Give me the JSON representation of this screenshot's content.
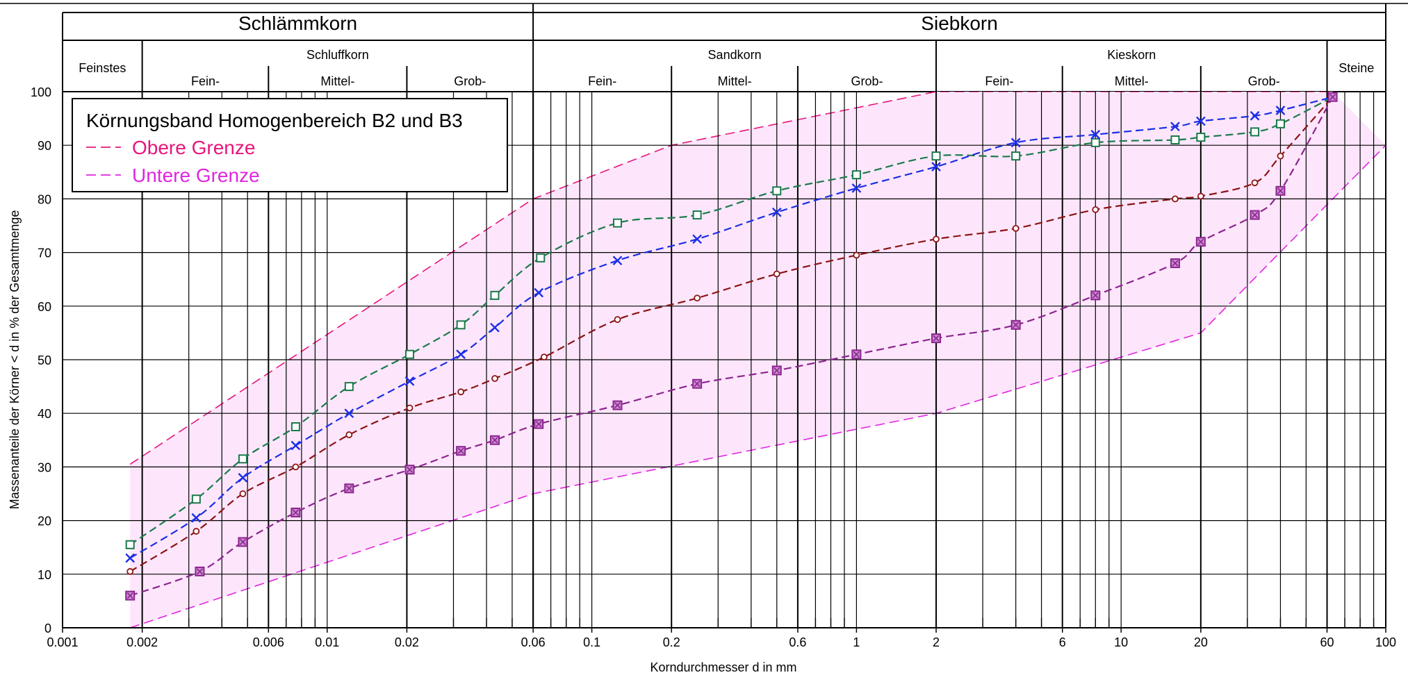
{
  "chart_data": {
    "type": "line",
    "x_scale": "log",
    "xlim": [
      0.001,
      100
    ],
    "ylim": [
      0,
      100
    ],
    "grid": true,
    "xlabel": "Korndurchmesser d in mm",
    "ylabel": "Massenanteile der Körner < d in % der Gesamtmenge",
    "x_tick_labels": [
      {
        "v": 0.001,
        "t": "0.001"
      },
      {
        "v": 0.002,
        "t": "0.002"
      },
      {
        "v": 0.006,
        "t": "0.006"
      },
      {
        "v": 0.01,
        "t": "0.01"
      },
      {
        "v": 0.02,
        "t": "0.02"
      },
      {
        "v": 0.06,
        "t": "0.06"
      },
      {
        "v": 0.1,
        "t": "0.1"
      },
      {
        "v": 0.2,
        "t": "0.2"
      },
      {
        "v": 0.6,
        "t": "0.6"
      },
      {
        "v": 1,
        "t": "1"
      },
      {
        "v": 2,
        "t": "2"
      },
      {
        "v": 6,
        "t": "6"
      },
      {
        "v": 10,
        "t": "10"
      },
      {
        "v": 20,
        "t": "20"
      },
      {
        "v": 60,
        "t": "60"
      },
      {
        "v": 100,
        "t": "100"
      }
    ],
    "y_ticks": [
      0,
      10,
      20,
      30,
      40,
      50,
      60,
      70,
      80,
      90,
      100
    ],
    "major_boundaries": [
      0.002,
      0.006,
      0.02,
      0.06,
      0.2,
      0.6,
      2,
      6,
      20,
      60
    ],
    "classification": {
      "top": [
        {
          "label": "Schlämmkorn",
          "from": 0.001,
          "to": 0.06
        },
        {
          "label": "Siebkorn",
          "from": 0.06,
          "to": 100
        }
      ],
      "mid": [
        {
          "label": "Feinstes",
          "from": 0.001,
          "to": 0.002,
          "full": true
        },
        {
          "label": "Schluffkorn",
          "from": 0.002,
          "to": 0.06
        },
        {
          "label": "Sandkorn",
          "from": 0.06,
          "to": 2
        },
        {
          "label": "Kieskorn",
          "from": 2,
          "to": 60
        },
        {
          "label": "Steine",
          "from": 60,
          "to": 100,
          "full": true
        }
      ],
      "sub": [
        {
          "label": "Fein-",
          "from": 0.002,
          "to": 0.006
        },
        {
          "label": "Mittel-",
          "from": 0.006,
          "to": 0.02
        },
        {
          "label": "Grob-",
          "from": 0.02,
          "to": 0.06
        },
        {
          "label": "Fein-",
          "from": 0.06,
          "to": 0.2
        },
        {
          "label": "Mittel-",
          "from": 0.2,
          "to": 0.6
        },
        {
          "label": "Grob-",
          "from": 0.6,
          "to": 2
        },
        {
          "label": "Fein-",
          "from": 2,
          "to": 6
        },
        {
          "label": "Mittel-",
          "from": 6,
          "to": 20
        },
        {
          "label": "Grob-",
          "from": 20,
          "to": 60
        }
      ]
    },
    "legend": {
      "title": "Körnungsband Homogenbereich B2 und B3",
      "placement": "top-left",
      "entries": [
        {
          "name": "Obere Grenze",
          "color": "#e8157a"
        },
        {
          "name": "Untere Grenze",
          "color": "#e026e0"
        }
      ]
    },
    "band": {
      "fill": "#fde6fb",
      "upper": {
        "name": "Obere Grenze",
        "color": "#e8157a",
        "x": [
          0.0018,
          0.06,
          0.2,
          2,
          63
        ],
        "y": [
          30.5,
          80,
          90,
          100,
          100
        ]
      },
      "lower": {
        "name": "Untere Grenze",
        "color": "#e026e0",
        "x": [
          0.0018,
          0.06,
          2,
          20,
          63,
          100
        ],
        "y": [
          0,
          25,
          40,
          55,
          80,
          90
        ]
      }
    },
    "series": [
      {
        "color": "#1a7a4a",
        "marker": "square-open",
        "x": [
          0.0018,
          0.0032,
          0.0048,
          0.0076,
          0.0121,
          0.0205,
          0.032,
          0.043,
          0.064,
          0.125,
          0.25,
          0.5,
          1,
          2,
          4,
          8,
          16,
          20,
          32,
          40,
          63
        ],
        "y": [
          15.5,
          24,
          31.5,
          37.5,
          45,
          51,
          56.5,
          62,
          69,
          75.5,
          77,
          81.5,
          84.5,
          88,
          88,
          90.5,
          91,
          91.5,
          92.5,
          94,
          99
        ]
      },
      {
        "color": "#1a2ee8",
        "marker": "x",
        "x": [
          0.0018,
          0.0032,
          0.0048,
          0.0076,
          0.0121,
          0.0205,
          0.032,
          0.043,
          0.063,
          0.125,
          0.25,
          0.5,
          1,
          2,
          4,
          8,
          16,
          20,
          32,
          40,
          63
        ],
        "y": [
          13,
          20.5,
          28,
          34,
          40,
          46,
          51,
          56,
          62.5,
          68.5,
          72.5,
          77.5,
          82,
          86,
          90.5,
          92,
          93.5,
          94.5,
          95.5,
          96.5,
          99
        ]
      },
      {
        "color": "#8b1414",
        "marker": "circle-open",
        "x": [
          0.0018,
          0.0032,
          0.0048,
          0.0076,
          0.0121,
          0.0205,
          0.032,
          0.043,
          0.066,
          0.125,
          0.25,
          0.5,
          1,
          2,
          4,
          8,
          16,
          20,
          32,
          40,
          63
        ],
        "y": [
          10.5,
          18,
          25,
          30,
          36,
          41,
          44,
          46.5,
          50.5,
          57.5,
          61.5,
          66,
          69.5,
          72.5,
          74.5,
          78,
          80,
          80.5,
          83,
          88,
          99
        ]
      },
      {
        "color": "#8c2390",
        "marker": "square-x",
        "x": [
          0.0018,
          0.0033,
          0.0048,
          0.0076,
          0.0121,
          0.0205,
          0.032,
          0.043,
          0.063,
          0.125,
          0.25,
          0.5,
          1,
          2,
          4,
          8,
          16,
          20,
          32,
          40,
          63
        ],
        "y": [
          6,
          10.5,
          16,
          21.5,
          26,
          29.5,
          33,
          35,
          38,
          41.5,
          45.5,
          48,
          51,
          54,
          56.5,
          62,
          68,
          72,
          77,
          81.5,
          99
        ]
      }
    ]
  }
}
